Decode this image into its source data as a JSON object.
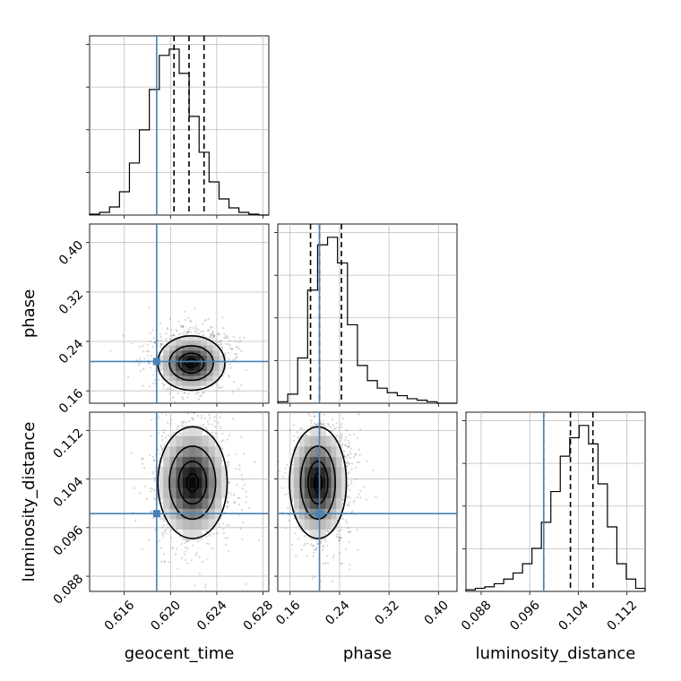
{
  "chart_data": {
    "type": "corner",
    "parameters": [
      "geocent_time",
      "phase",
      "luminosity_distance"
    ],
    "truths": {
      "geocent_time": 0.6188,
      "phase": 0.2075,
      "luminosity_distance": 0.0983
    },
    "truth_color": "#4682b4",
    "ranges": {
      "geocent_time": [
        0.613,
        0.6285
      ],
      "phase": [
        0.14,
        0.43
      ],
      "luminosity_distance": [
        0.0855,
        0.115
      ]
    },
    "ticks": {
      "geocent_time": [
        "0.616",
        "0.620",
        "0.624",
        "0.628"
      ],
      "phase": [
        "0.16",
        "0.24",
        "0.32",
        "0.40"
      ],
      "luminosity_distance": [
        "0.088",
        "0.096",
        "0.104",
        "0.112"
      ]
    },
    "quantiles": {
      "geocent_time": [
        0.6203,
        0.6216,
        0.6229
      ],
      "phase": [
        0.193,
        0.2075,
        0.243
      ],
      "luminosity_distance": [
        0.0983,
        0.1027,
        0.1064
      ]
    },
    "histograms": {
      "geocent_time": [
        1,
        3,
        9,
        26,
        58,
        95,
        140,
        178,
        185,
        158,
        110,
        70,
        37,
        18,
        8,
        3,
        1,
        0
      ],
      "phase": [
        1,
        6,
        30,
        75,
        105,
        110,
        93,
        52,
        25,
        15,
        10,
        7,
        5,
        3,
        2,
        1,
        0,
        0
      ],
      "luminosity_distance": [
        1,
        2,
        3,
        5,
        8,
        12,
        18,
        28,
        45,
        65,
        88,
        100,
        108,
        96,
        70,
        42,
        18,
        8,
        2
      ]
    },
    "density": [
      {
        "x": "geocent_time",
        "y": "phase",
        "center": [
          0.6218,
          0.205
        ],
        "contour_levels": [
          {
            "rx": 0.0029,
            "ry": 0.044
          },
          {
            "rx": 0.0019,
            "ry": 0.028
          },
          {
            "rx": 0.0011,
            "ry": 0.016
          },
          {
            "rx": 0.0005,
            "ry": 0.007
          }
        ]
      },
      {
        "x": "geocent_time",
        "y": "luminosity_distance",
        "center": [
          0.6219,
          0.1034
        ],
        "contour_levels": [
          {
            "rx": 0.003,
            "ry": 0.0092
          },
          {
            "rx": 0.002,
            "ry": 0.006
          },
          {
            "rx": 0.0012,
            "ry": 0.0035
          },
          {
            "rx": 0.0005,
            "ry": 0.0015
          }
        ]
      },
      {
        "x": "phase",
        "y": "luminosity_distance",
        "center": [
          0.205,
          0.1034
        ],
        "contour_levels": [
          {
            "rx": 0.046,
            "ry": 0.0092
          },
          {
            "rx": 0.028,
            "ry": 0.006
          },
          {
            "rx": 0.016,
            "ry": 0.0035
          },
          {
            "rx": 0.006,
            "ry": 0.0015
          }
        ]
      }
    ],
    "xlabel_text": {
      "geocent_time": "geocent_time",
      "phase": "phase",
      "luminosity_distance": "luminosity_distance"
    },
    "ylabel_text": {
      "phase": "phase",
      "luminosity_distance": "luminosity_distance"
    }
  }
}
